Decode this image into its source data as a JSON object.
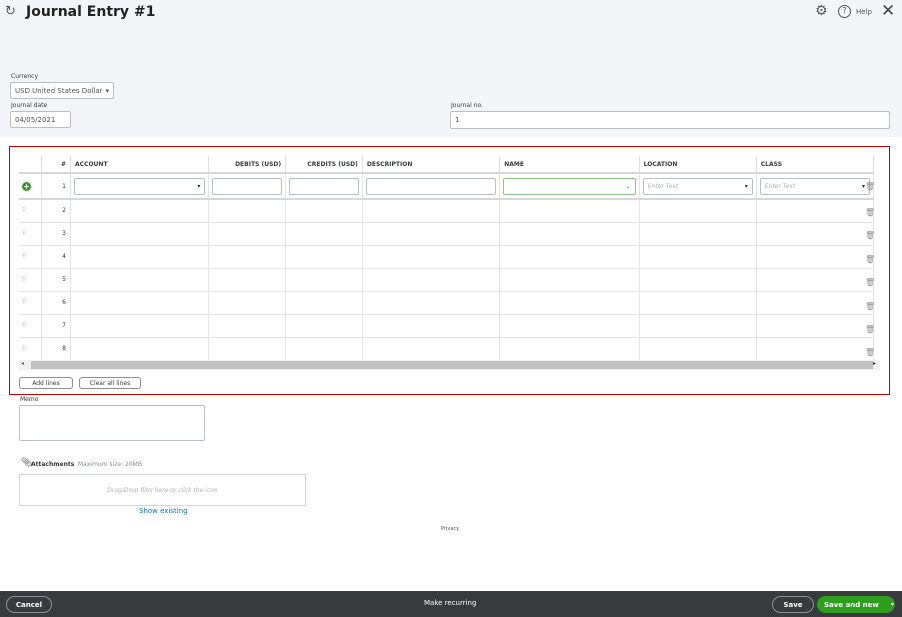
{
  "header": {
    "title": "Journal Entry #1",
    "help": "Help"
  },
  "form": {
    "currency_label": "Currency",
    "currency_value": "USD United States Dollar",
    "date_label": "Journal date",
    "date_value": "04/05/2021",
    "no_label": "Journal no.",
    "no_value": "1"
  },
  "table": {
    "columns": [
      "#",
      "ACCOUNT",
      "DEBITS (USD)",
      "CREDITS (USD)",
      "DESCRIPTION",
      "NAME",
      "LOCATION",
      "CLASS"
    ],
    "rows": [
      "1",
      "2",
      "3",
      "4",
      "5",
      "6",
      "7",
      "8"
    ],
    "placeholder": "Enter Text"
  },
  "actions": {
    "add_lines": "Add lines",
    "clear_lines": "Clear all lines"
  },
  "memo": {
    "label": "Memo"
  },
  "attachments": {
    "label": "Attachments",
    "max": "Maximum size: 20MB",
    "drop": "Drag/Drop files here or click the icon",
    "show": "Show existing"
  },
  "privacy": "Privacy",
  "footer": {
    "cancel": "Cancel",
    "recurring": "Make recurring",
    "save": "Save",
    "save_new": "Save and new"
  },
  "colors": {
    "accent": "#2ca01c",
    "highlight_border": "#c00000"
  }
}
